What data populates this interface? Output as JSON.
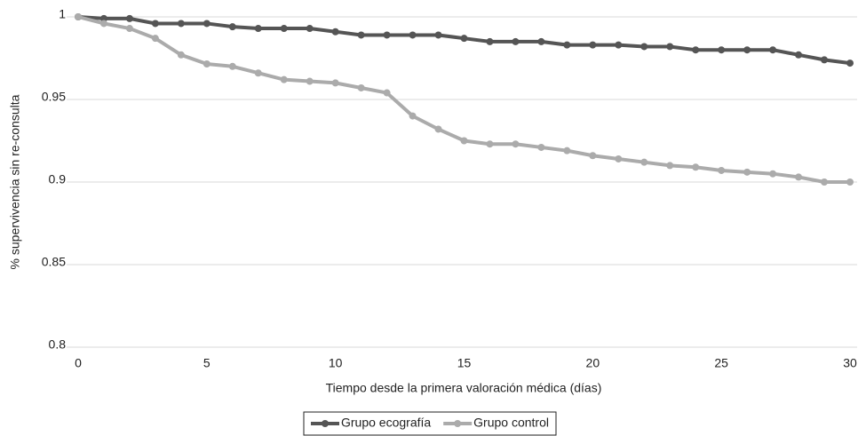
{
  "chart_data": {
    "type": "line",
    "x_label": "Tiempo desde la primera valoración médica (días)",
    "y_label": "% supervivencia sin re-consulta",
    "x": [
      0,
      1,
      2,
      3,
      4,
      5,
      6,
      7,
      8,
      9,
      10,
      11,
      12,
      13,
      14,
      15,
      16,
      17,
      18,
      19,
      20,
      21,
      22,
      23,
      24,
      25,
      26,
      27,
      28,
      29,
      30
    ],
    "series": [
      {
        "name": "Grupo ecografía",
        "color": "#555555",
        "values": [
          1,
          0.999,
          0.999,
          0.996,
          0.996,
          0.996,
          0.994,
          0.993,
          0.993,
          0.993,
          0.991,
          0.989,
          0.989,
          0.989,
          0.989,
          0.987,
          0.985,
          0.985,
          0.985,
          0.983,
          0.983,
          0.983,
          0.982,
          0.982,
          0.98,
          0.98,
          0.98,
          0.98,
          0.977,
          0.974,
          0.972
        ]
      },
      {
        "name": "Grupo control",
        "color": "#ababab",
        "values": [
          1,
          0.996,
          0.993,
          0.987,
          0.977,
          0.9715,
          0.97,
          0.966,
          0.962,
          0.961,
          0.96,
          0.957,
          0.954,
          0.94,
          0.932,
          0.925,
          0.923,
          0.923,
          0.921,
          0.919,
          0.916,
          0.914,
          0.912,
          0.91,
          0.909,
          0.907,
          0.906,
          0.905,
          0.903,
          0.9,
          0.9
        ]
      }
    ],
    "xlim": [
      0,
      30
    ],
    "xticks": [
      0,
      5,
      10,
      15,
      20,
      25,
      30
    ],
    "ylim": [
      0.8,
      1
    ],
    "yticks": [
      0.8,
      0.85,
      0.9,
      0.95,
      1
    ],
    "grid": true,
    "legend": "bottom"
  }
}
